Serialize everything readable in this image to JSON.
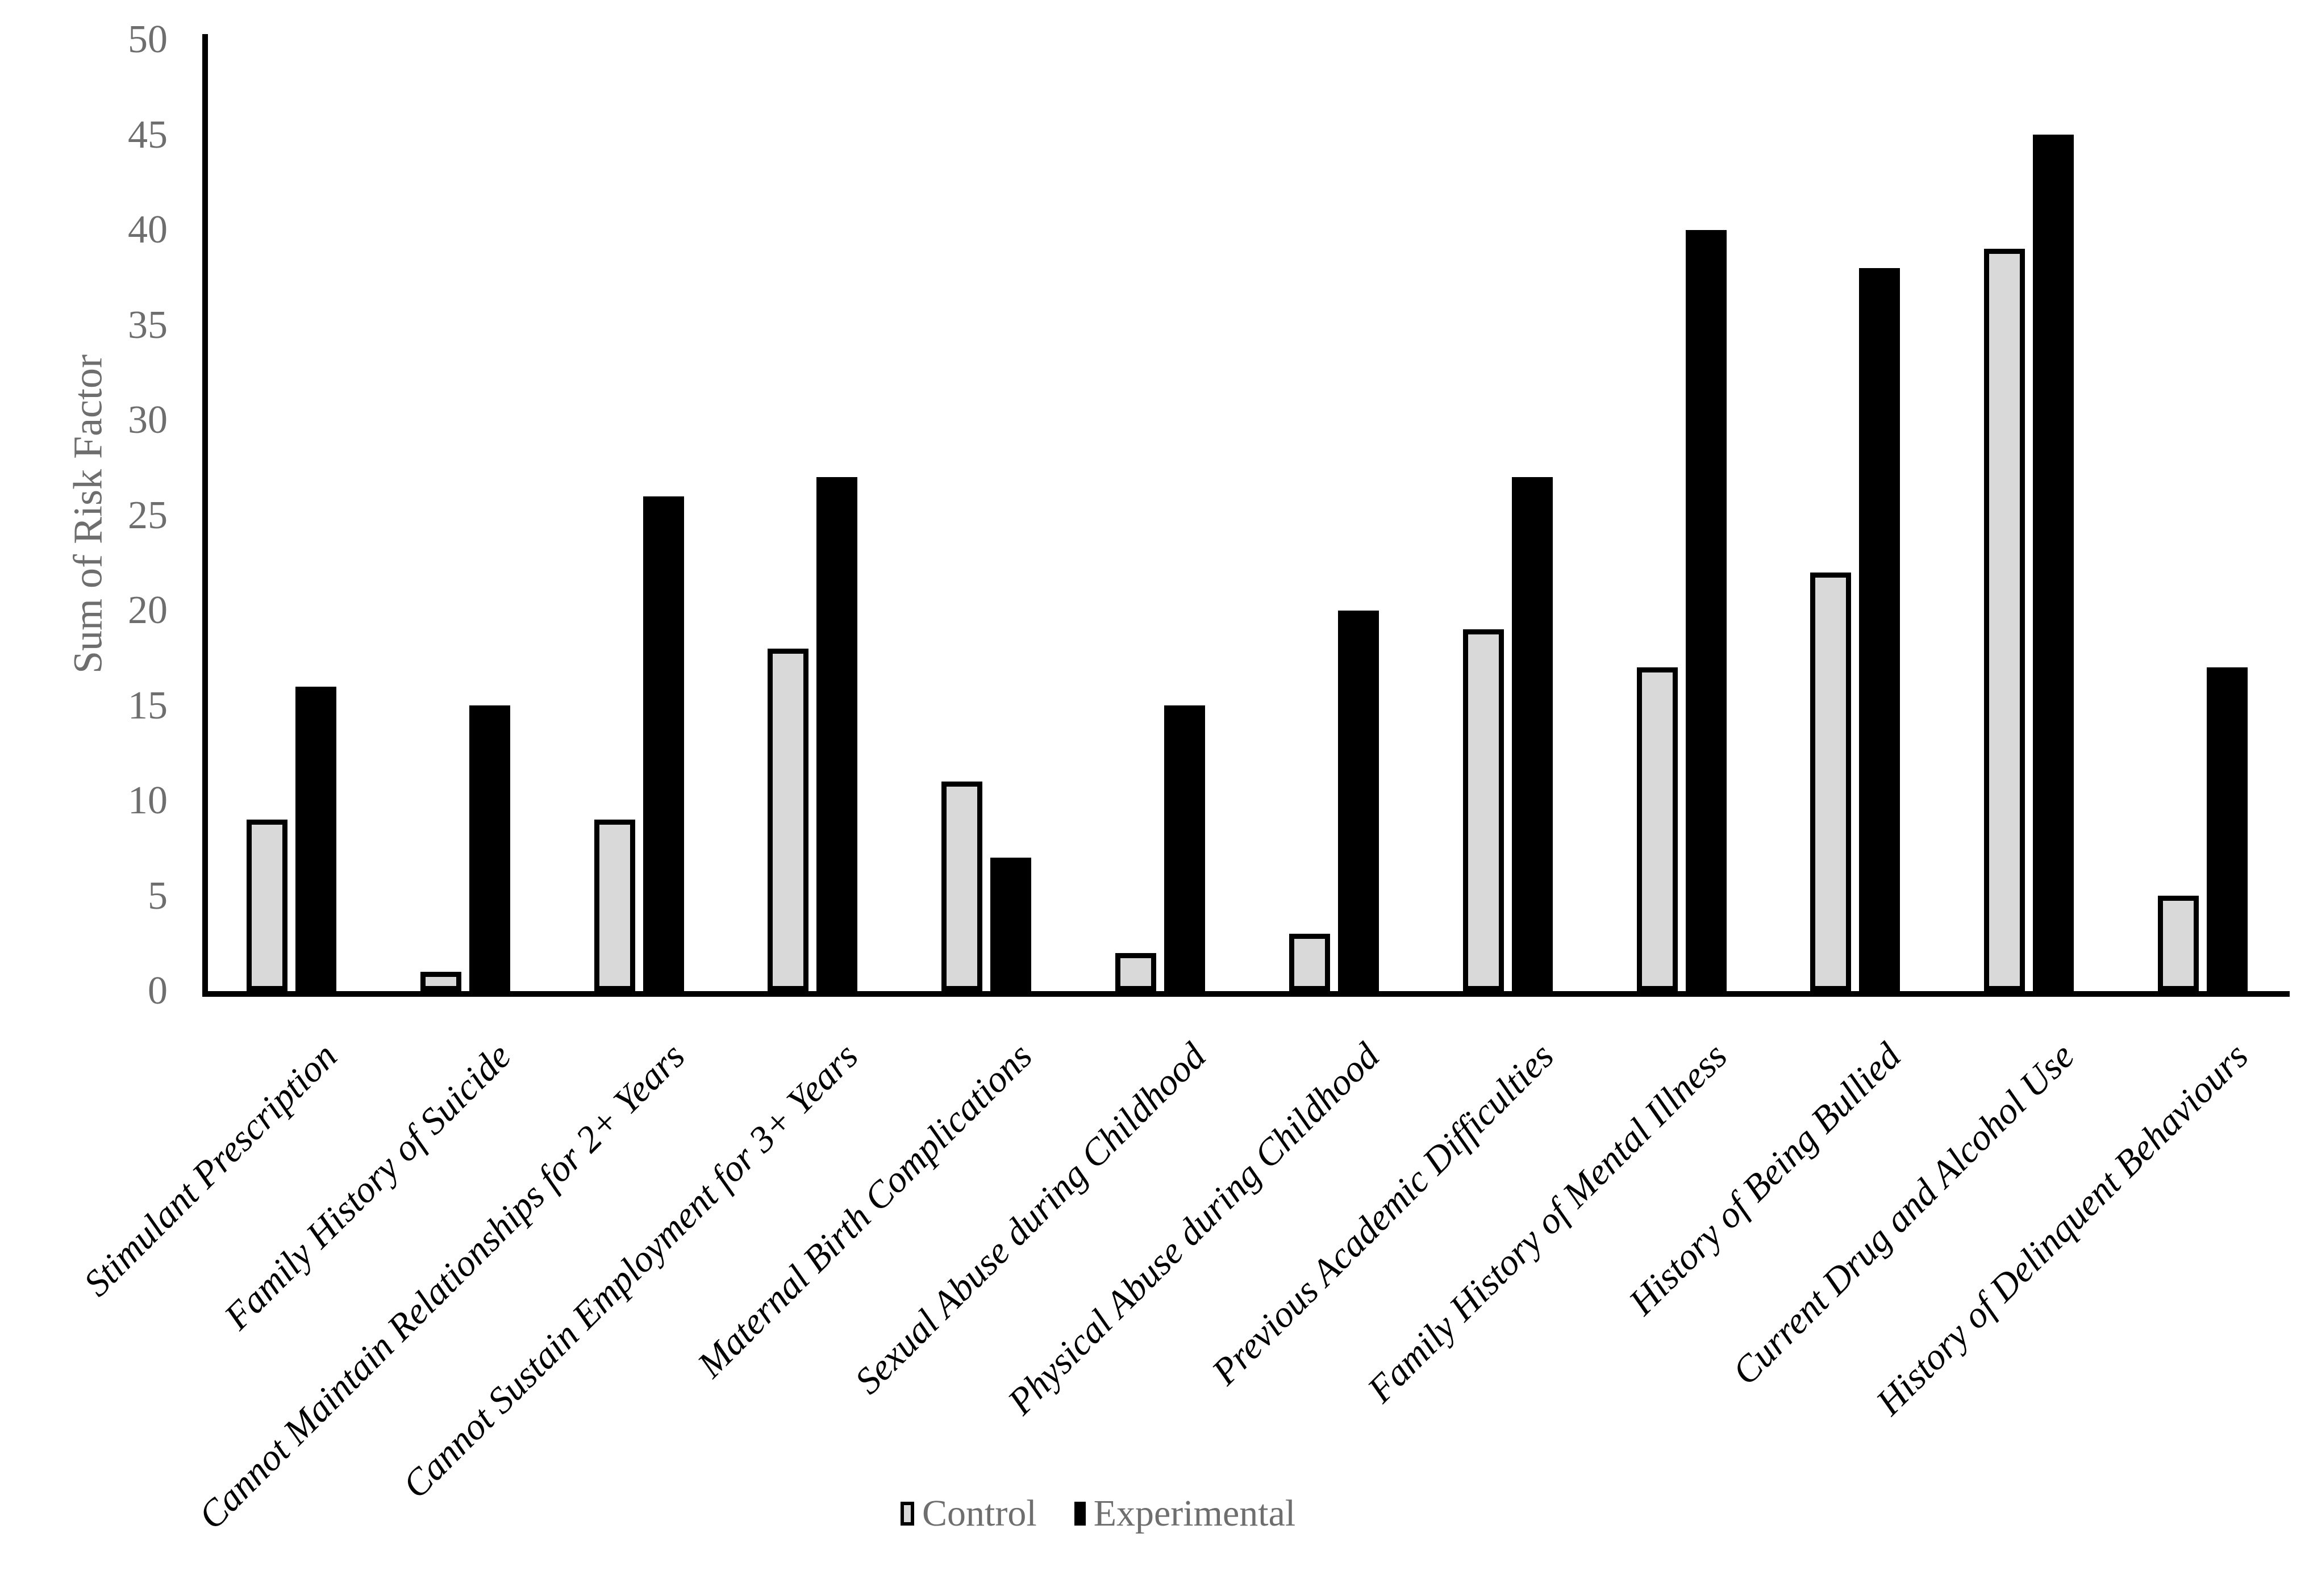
{
  "page": {
    "background": "#ffffff"
  },
  "chart_data": {
    "type": "bar",
    "bar_style": "grouped",
    "title": "",
    "xlabel": "",
    "ylabel": "Sum of Risk Factor",
    "ylim": [
      0,
      50
    ],
    "ytick_step": 5,
    "grid": false,
    "legend_position": "bottom",
    "categories": [
      "Stimulant Prescription",
      "Family History of Suicide",
      "Cannot Maintain Relationships for 2+ Years",
      "Cannot Sustain Employment for 3+ Years",
      "Maternal Birth Complications",
      "Sexual Abuse during Childhood",
      "Physical Abuse during Childhood",
      "Previous Academic Difficulties",
      "Family History of Mental Illness",
      "History of Being Bullied",
      "Current Drug and Alcohol Use",
      "History of Delinquent Behaviours"
    ],
    "series": [
      {
        "name": "Control",
        "fill": "#d9d9d9",
        "outline": "#000000",
        "values": [
          9,
          1,
          9,
          18,
          11,
          2,
          3,
          19,
          17,
          22,
          39,
          5
        ]
      },
      {
        "name": "Experimental",
        "fill": "#000000",
        "outline": "#000000",
        "values": [
          16,
          15,
          26,
          27,
          7,
          15,
          20,
          27,
          40,
          38,
          45,
          17
        ]
      }
    ]
  },
  "colors": {
    "axis": "#000000",
    "tick_text": "#6e6e6e",
    "category_text": "#000000",
    "legend_text": "#6e6e6e",
    "control_fill": "#d9d9d9",
    "experimental_fill": "#000000"
  }
}
